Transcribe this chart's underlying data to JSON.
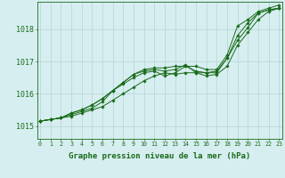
{
  "background_color": "#d6eef0",
  "grid_color": "#b0cccc",
  "line_color": "#1a6b1a",
  "marker_color": "#1a6b1a",
  "xlabel": "Graphe pression niveau de la mer (hPa)",
  "xlabel_fontsize": 6.5,
  "ytick_fontsize": 6,
  "xtick_fontsize": 4.8,
  "yticks": [
    1015,
    1016,
    1017,
    1018
  ],
  "xticks": [
    0,
    1,
    2,
    3,
    4,
    5,
    6,
    7,
    8,
    9,
    10,
    11,
    12,
    13,
    14,
    15,
    16,
    17,
    18,
    19,
    20,
    21,
    22,
    23
  ],
  "xlim": [
    -0.3,
    23.3
  ],
  "ylim": [
    1014.6,
    1018.85
  ],
  "series": [
    [
      1015.15,
      1015.2,
      1015.25,
      1015.3,
      1015.4,
      1015.5,
      1015.6,
      1015.8,
      1016.0,
      1016.2,
      1016.4,
      1016.55,
      1016.65,
      1016.6,
      1016.65,
      1016.65,
      1016.55,
      1016.6,
      1016.85,
      1017.5,
      1017.9,
      1018.3,
      1018.55,
      1018.65
    ],
    [
      1015.15,
      1015.2,
      1015.25,
      1015.35,
      1015.45,
      1015.55,
      1015.75,
      1016.1,
      1016.3,
      1016.5,
      1016.65,
      1016.7,
      1016.55,
      1016.65,
      1016.85,
      1016.7,
      1016.65,
      1016.65,
      1017.1,
      1017.65,
      1018.05,
      1018.5,
      1018.6,
      1018.65
    ],
    [
      1015.15,
      1015.2,
      1015.25,
      1015.4,
      1015.5,
      1015.65,
      1015.85,
      1016.1,
      1016.35,
      1016.6,
      1016.7,
      1016.75,
      1016.7,
      1016.75,
      1016.9,
      1016.65,
      1016.65,
      1016.7,
      1017.1,
      1017.8,
      1018.2,
      1018.5,
      1018.6,
      1018.65
    ],
    [
      1015.15,
      1015.2,
      1015.25,
      1015.4,
      1015.5,
      1015.65,
      1015.85,
      1016.1,
      1016.35,
      1016.6,
      1016.75,
      1016.8,
      1016.8,
      1016.85,
      1016.85,
      1016.85,
      1016.75,
      1016.75,
      1017.2,
      1018.1,
      1018.3,
      1018.55,
      1018.65,
      1018.75
    ]
  ],
  "linewidths": [
    0.7,
    0.7,
    0.7,
    0.7
  ],
  "marker_size": 1.8
}
